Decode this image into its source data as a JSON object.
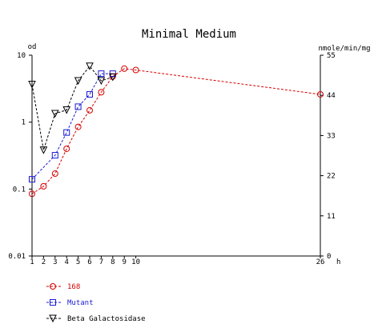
{
  "chart_data": {
    "type": "line",
    "title": "Minimal Medium",
    "x_unit": "h",
    "left_axis_label": "od",
    "right_axis_label": "nmole/min/mg",
    "left_scale": "log",
    "left_ylim": [
      0.01,
      10
    ],
    "left_tick_labels": [
      "10",
      "1",
      "0.1",
      "0.01"
    ],
    "left_tick_values": [
      10,
      1,
      0.1,
      0.01
    ],
    "right_ylim": [
      0,
      55
    ],
    "right_tick_labels": [
      "55",
      "44",
      "33",
      "22",
      "11",
      "0"
    ],
    "right_tick_values": [
      55,
      44,
      33,
      22,
      11,
      0
    ],
    "x_tick_labels": [
      "1",
      "2",
      "3",
      "4",
      "5",
      "6",
      "7",
      "8",
      "9",
      "10",
      "26"
    ],
    "x_tick_values": [
      1,
      2,
      3,
      4,
      5,
      6,
      7,
      8,
      9,
      10,
      26
    ],
    "grid": false,
    "legend_position": "bottom-left",
    "series": [
      {
        "name": "168",
        "axis": "left",
        "marker": "circle",
        "color": "#d40000",
        "x": [
          1,
          2,
          3,
          4,
          5,
          6,
          7,
          8,
          9,
          10,
          26
        ],
        "y": [
          0.085,
          0.11,
          0.17,
          0.4,
          0.85,
          1.5,
          2.8,
          4.8,
          6.3,
          6.0,
          2.6
        ]
      },
      {
        "name": "Mutant",
        "axis": "left",
        "marker": "square",
        "color": "#1a1ad4",
        "x": [
          1,
          3,
          4,
          5,
          6,
          7,
          8
        ],
        "y": [
          0.14,
          0.32,
          0.7,
          1.7,
          2.6,
          5.3,
          5.3
        ]
      },
      {
        "name": "Beta Galactosidase",
        "axis": "right",
        "marker": "triangle-down",
        "color": "#000000",
        "x": [
          1,
          2,
          3,
          4,
          5,
          6,
          7,
          8
        ],
        "y": [
          47,
          29,
          39,
          40,
          48,
          52,
          48,
          49
        ]
      }
    ]
  }
}
